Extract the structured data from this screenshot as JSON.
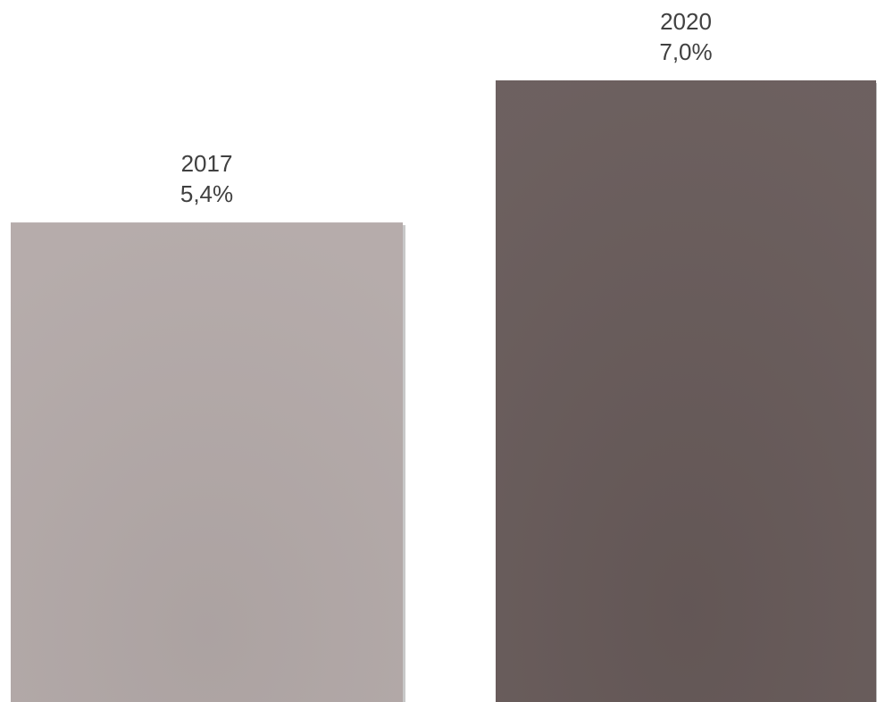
{
  "chart_data": {
    "type": "bar",
    "categories": [
      "2017",
      "2020"
    ],
    "values": [
      5.4,
      7.0
    ],
    "value_labels": [
      "5,4%",
      "7,0%"
    ],
    "unit": "%",
    "title": "",
    "xlabel": "",
    "ylabel": "",
    "ylim": [
      0,
      7.0
    ],
    "grid": false,
    "legend": "none",
    "colors": [
      "#b3a9a8",
      "#675a59"
    ],
    "shadow_color": "#9a9a9a"
  }
}
